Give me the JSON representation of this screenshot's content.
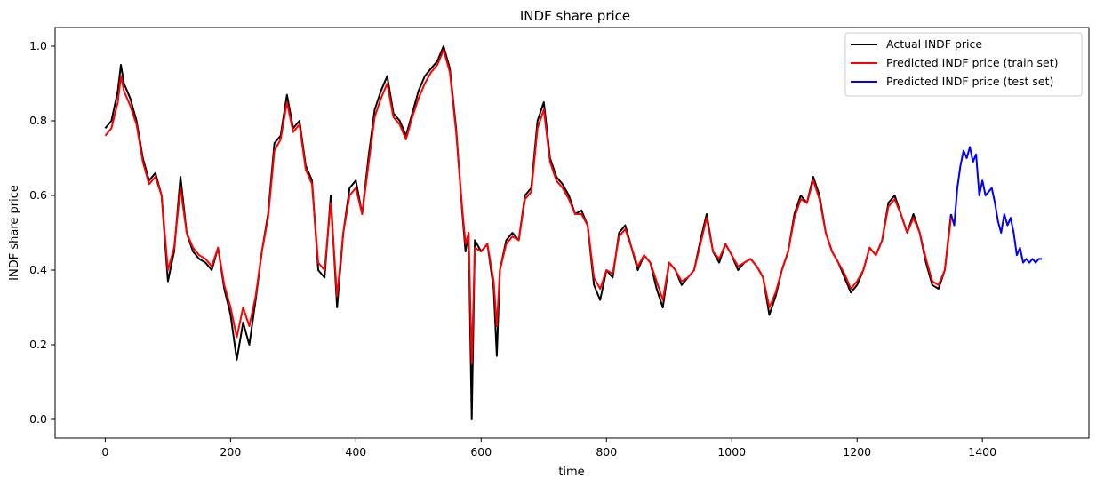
{
  "chart_data": {
    "type": "line",
    "title": "INDF share price",
    "xlabel": "time",
    "ylabel": "INDF share price",
    "xlim": [
      -80,
      1570
    ],
    "ylim": [
      -0.05,
      1.05
    ],
    "xticks": [
      0,
      200,
      400,
      600,
      800,
      1000,
      1200,
      1400
    ],
    "yticks": [
      0.0,
      0.2,
      0.4,
      0.6,
      0.8,
      1.0
    ],
    "ytick_labels": [
      "0.0",
      "0.2",
      "0.4",
      "0.6",
      "0.8",
      "1.0"
    ],
    "grid": false,
    "legend_position": "top-right",
    "series": [
      {
        "name": "Actual INDF price",
        "color": "#000000",
        "x": [
          0,
          10,
          20,
          25,
          30,
          40,
          50,
          60,
          70,
          80,
          90,
          100,
          110,
          120,
          130,
          140,
          150,
          160,
          170,
          180,
          190,
          200,
          210,
          220,
          230,
          240,
          250,
          260,
          270,
          280,
          290,
          300,
          310,
          320,
          330,
          340,
          350,
          360,
          370,
          380,
          390,
          400,
          410,
          420,
          430,
          440,
          450,
          460,
          470,
          480,
          490,
          500,
          510,
          520,
          530,
          540,
          550,
          560,
          570,
          575,
          580,
          585,
          590,
          600,
          610,
          620,
          625,
          630,
          640,
          650,
          660,
          670,
          680,
          690,
          700,
          710,
          720,
          730,
          740,
          750,
          760,
          770,
          780,
          790,
          800,
          810,
          820,
          830,
          840,
          850,
          860,
          870,
          880,
          890,
          900,
          910,
          920,
          930,
          940,
          950,
          960,
          970,
          980,
          990,
          1000,
          1010,
          1020,
          1030,
          1040,
          1050,
          1060,
          1070,
          1080,
          1090,
          1100,
          1110,
          1120,
          1130,
          1140,
          1150,
          1160,
          1170,
          1180,
          1190,
          1200,
          1210,
          1220,
          1230,
          1240,
          1250,
          1260,
          1270,
          1280,
          1290,
          1300,
          1310,
          1320,
          1330,
          1340,
          1350
        ],
        "y": [
          0.78,
          0.8,
          0.88,
          0.95,
          0.9,
          0.86,
          0.8,
          0.7,
          0.64,
          0.66,
          0.6,
          0.37,
          0.45,
          0.65,
          0.5,
          0.45,
          0.43,
          0.42,
          0.4,
          0.46,
          0.35,
          0.28,
          0.16,
          0.26,
          0.2,
          0.32,
          0.45,
          0.55,
          0.74,
          0.76,
          0.87,
          0.78,
          0.8,
          0.68,
          0.64,
          0.4,
          0.38,
          0.6,
          0.3,
          0.5,
          0.62,
          0.64,
          0.55,
          0.7,
          0.83,
          0.88,
          0.92,
          0.82,
          0.8,
          0.76,
          0.82,
          0.88,
          0.92,
          0.94,
          0.96,
          1.0,
          0.94,
          0.78,
          0.55,
          0.45,
          0.5,
          0.0,
          0.48,
          0.45,
          0.47,
          0.35,
          0.17,
          0.4,
          0.48,
          0.5,
          0.48,
          0.6,
          0.62,
          0.8,
          0.85,
          0.7,
          0.65,
          0.63,
          0.6,
          0.55,
          0.56,
          0.52,
          0.36,
          0.32,
          0.4,
          0.38,
          0.5,
          0.52,
          0.46,
          0.4,
          0.44,
          0.42,
          0.35,
          0.3,
          0.42,
          0.4,
          0.36,
          0.38,
          0.4,
          0.48,
          0.55,
          0.45,
          0.42,
          0.47,
          0.44,
          0.4,
          0.42,
          0.43,
          0.41,
          0.38,
          0.28,
          0.33,
          0.4,
          0.45,
          0.55,
          0.6,
          0.58,
          0.65,
          0.6,
          0.5,
          0.45,
          0.42,
          0.38,
          0.34,
          0.36,
          0.4,
          0.46,
          0.44,
          0.48,
          0.58,
          0.6,
          0.55,
          0.5,
          0.55,
          0.5,
          0.42,
          0.36,
          0.35,
          0.4,
          0.55
        ]
      },
      {
        "name": "Predicted INDF price (train set)",
        "color": "#ff0000",
        "x": [
          0,
          10,
          20,
          25,
          30,
          40,
          50,
          60,
          70,
          80,
          90,
          100,
          110,
          120,
          130,
          140,
          150,
          160,
          170,
          180,
          190,
          200,
          210,
          220,
          230,
          240,
          250,
          260,
          270,
          280,
          290,
          300,
          310,
          320,
          330,
          340,
          350,
          360,
          370,
          380,
          390,
          400,
          410,
          420,
          430,
          440,
          450,
          460,
          470,
          480,
          490,
          500,
          510,
          520,
          530,
          540,
          550,
          560,
          570,
          575,
          580,
          585,
          590,
          600,
          610,
          620,
          625,
          630,
          640,
          650,
          660,
          670,
          680,
          690,
          700,
          710,
          720,
          730,
          740,
          750,
          760,
          770,
          780,
          790,
          800,
          810,
          820,
          830,
          840,
          850,
          860,
          870,
          880,
          890,
          900,
          910,
          920,
          930,
          940,
          950,
          960,
          970,
          980,
          990,
          1000,
          1010,
          1020,
          1030,
          1040,
          1050,
          1060,
          1070,
          1080,
          1090,
          1100,
          1110,
          1120,
          1130,
          1140,
          1150,
          1160,
          1170,
          1180,
          1190,
          1200,
          1210,
          1220,
          1230,
          1240,
          1250,
          1260,
          1270,
          1280,
          1290,
          1300,
          1310,
          1320,
          1330,
          1340,
          1350
        ],
        "y": [
          0.76,
          0.78,
          0.85,
          0.92,
          0.88,
          0.84,
          0.79,
          0.69,
          0.63,
          0.65,
          0.6,
          0.4,
          0.46,
          0.62,
          0.5,
          0.46,
          0.44,
          0.43,
          0.41,
          0.46,
          0.36,
          0.3,
          0.22,
          0.3,
          0.25,
          0.33,
          0.45,
          0.54,
          0.72,
          0.75,
          0.85,
          0.77,
          0.79,
          0.67,
          0.63,
          0.42,
          0.4,
          0.58,
          0.33,
          0.5,
          0.6,
          0.62,
          0.55,
          0.68,
          0.81,
          0.86,
          0.9,
          0.81,
          0.79,
          0.75,
          0.81,
          0.86,
          0.9,
          0.93,
          0.95,
          0.99,
          0.93,
          0.77,
          0.56,
          0.47,
          0.5,
          0.15,
          0.46,
          0.45,
          0.47,
          0.37,
          0.25,
          0.4,
          0.47,
          0.49,
          0.48,
          0.59,
          0.61,
          0.78,
          0.83,
          0.69,
          0.64,
          0.62,
          0.59,
          0.55,
          0.55,
          0.52,
          0.38,
          0.35,
          0.4,
          0.39,
          0.49,
          0.51,
          0.46,
          0.41,
          0.44,
          0.42,
          0.37,
          0.32,
          0.42,
          0.4,
          0.37,
          0.38,
          0.4,
          0.47,
          0.54,
          0.45,
          0.43,
          0.47,
          0.44,
          0.41,
          0.42,
          0.43,
          0.41,
          0.38,
          0.3,
          0.34,
          0.4,
          0.45,
          0.54,
          0.59,
          0.58,
          0.64,
          0.59,
          0.5,
          0.45,
          0.42,
          0.39,
          0.35,
          0.37,
          0.4,
          0.46,
          0.44,
          0.48,
          0.57,
          0.59,
          0.55,
          0.5,
          0.54,
          0.5,
          0.43,
          0.37,
          0.36,
          0.4,
          0.54
        ]
      },
      {
        "name": "Predicted INDF price (test set)",
        "color": "#0000ff",
        "x": [
          1350,
          1355,
          1360,
          1365,
          1370,
          1375,
          1380,
          1385,
          1390,
          1395,
          1400,
          1405,
          1410,
          1415,
          1420,
          1425,
          1430,
          1435,
          1440,
          1445,
          1450,
          1455,
          1460,
          1465,
          1470,
          1475,
          1480,
          1485,
          1490,
          1495
        ],
        "y": [
          0.55,
          0.52,
          0.62,
          0.68,
          0.72,
          0.7,
          0.73,
          0.69,
          0.71,
          0.6,
          0.64,
          0.6,
          0.61,
          0.62,
          0.58,
          0.53,
          0.5,
          0.55,
          0.52,
          0.54,
          0.5,
          0.44,
          0.46,
          0.42,
          0.43,
          0.42,
          0.43,
          0.42,
          0.43,
          0.43
        ]
      }
    ]
  }
}
